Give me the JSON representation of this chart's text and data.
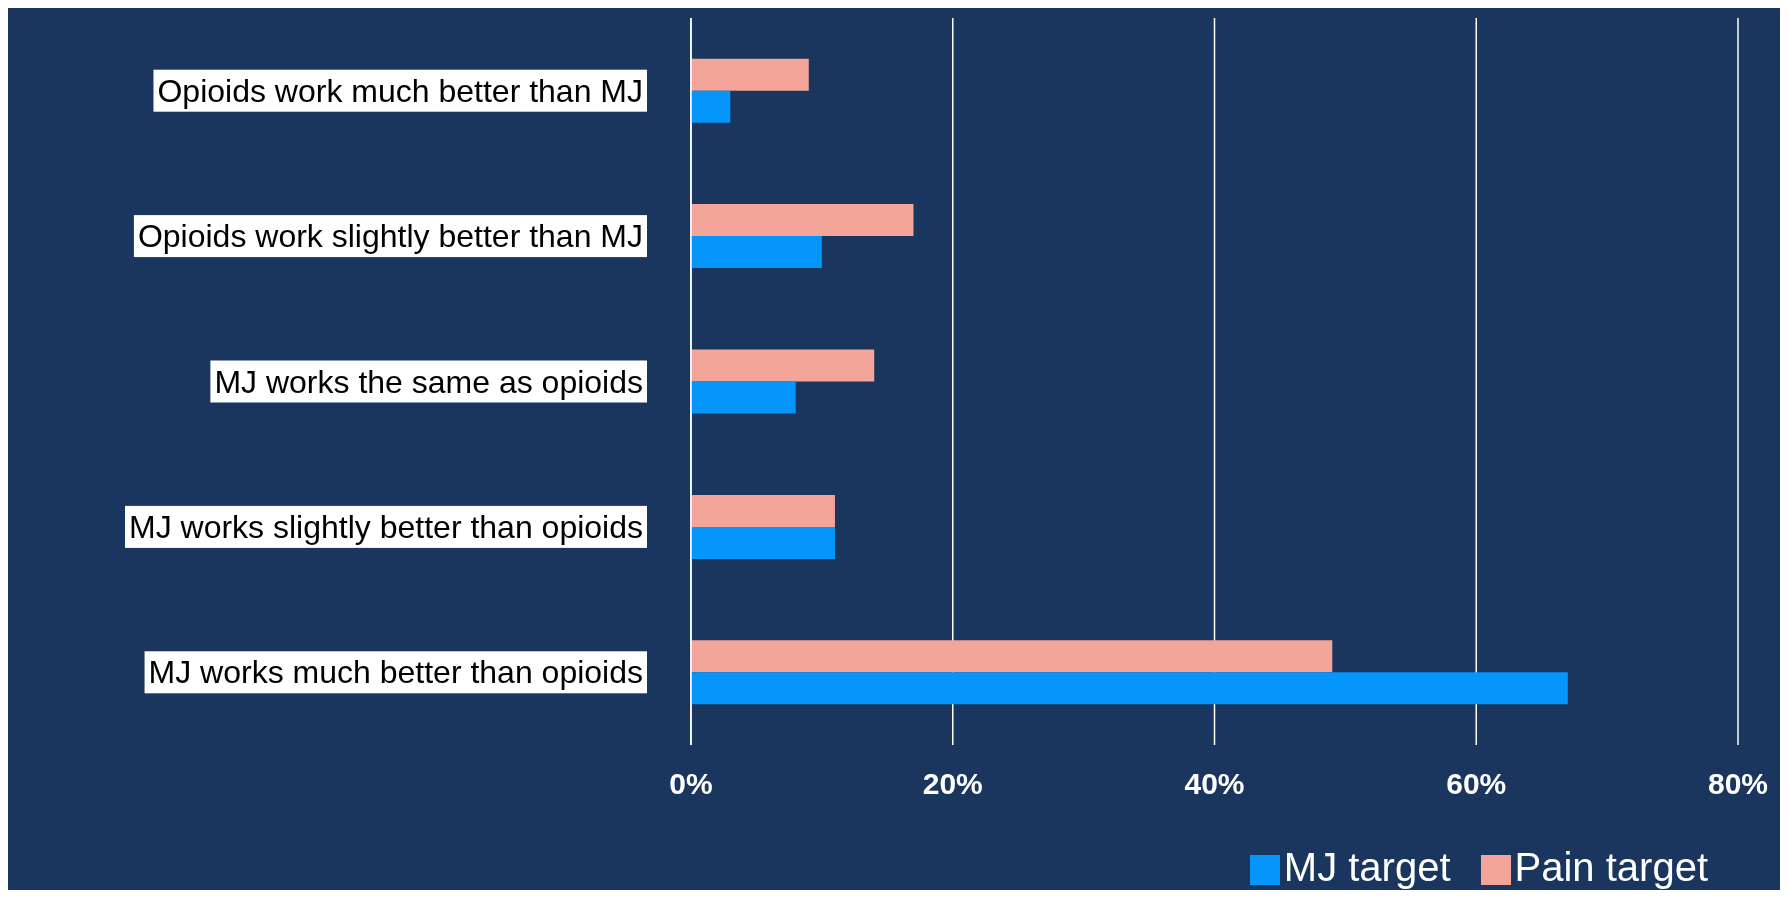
{
  "chart_data": {
    "type": "bar",
    "orientation": "horizontal",
    "categories": [
      "Opioids work much better than MJ",
      "Opioids work slightly better than MJ",
      "MJ works the same as opioids",
      "MJ works slightly better than opioids",
      "MJ works much better than opioids"
    ],
    "series": [
      {
        "name": "Pain target",
        "color": "#f2a598",
        "values": [
          9,
          17,
          14,
          11,
          49
        ]
      },
      {
        "name": "MJ target",
        "color": "#0595fb",
        "values": [
          3,
          10,
          8,
          11,
          67
        ]
      }
    ],
    "xlim": [
      0,
      80
    ],
    "xticks": [
      {
        "value": 0,
        "label": "0%"
      },
      {
        "value": 20,
        "label": "20%"
      },
      {
        "value": 40,
        "label": "40%"
      },
      {
        "value": 60,
        "label": "60%"
      },
      {
        "value": 80,
        "label": "80%"
      }
    ],
    "grid": "x",
    "legend": "bottom right"
  }
}
